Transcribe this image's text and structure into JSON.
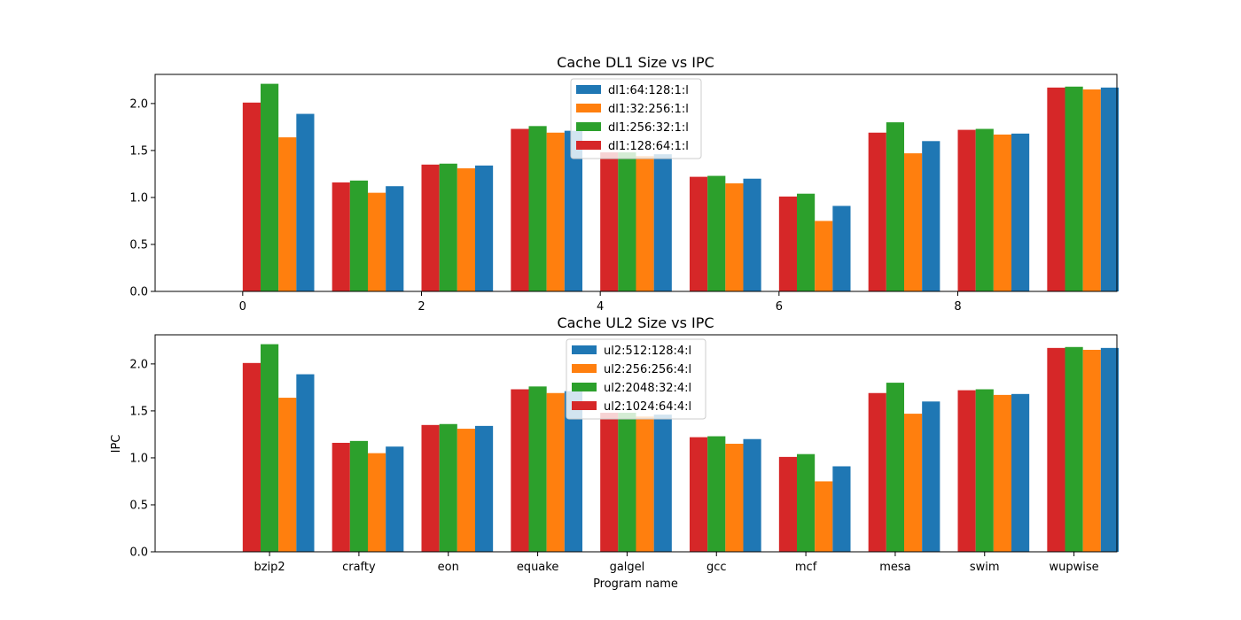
{
  "colors": {
    "red": "#d62728",
    "green": "#2ca02c",
    "orange": "#ff7f0e",
    "blue": "#1f77b4"
  },
  "chart_data": [
    {
      "type": "bar",
      "title": "Cache DL1 Size vs IPC",
      "xlabel": "",
      "ylabel": "",
      "x_ticks": [
        "0",
        "2",
        "4",
        "6",
        "8"
      ],
      "x_tick_positions": [
        0,
        2,
        4,
        6,
        8
      ],
      "y_ticks": [
        "0.0",
        "0.5",
        "1.0",
        "1.5",
        "2.0"
      ],
      "ylim": [
        0,
        2.31
      ],
      "xlim": [
        -0.98,
        9.78
      ],
      "legend_placement": "upper-center",
      "bar_order": [
        "dl1:128:64:1:l",
        "dl1:256:32:1:l",
        "dl1:32:256:1:l",
        "dl1:64:128:1:l"
      ],
      "legend_order": [
        "dl1:64:128:1:l",
        "dl1:32:256:1:l",
        "dl1:256:32:1:l",
        "dl1:128:64:1:l"
      ],
      "series": [
        {
          "name": "dl1:64:128:1:l",
          "color": "#1f77b4",
          "values": [
            1.89,
            1.12,
            1.34,
            1.71,
            1.46,
            1.2,
            0.91,
            1.6,
            1.68,
            2.17
          ]
        },
        {
          "name": "dl1:32:256:1:l",
          "color": "#ff7f0e",
          "values": [
            1.64,
            1.05,
            1.31,
            1.69,
            1.44,
            1.15,
            0.75,
            1.47,
            1.67,
            2.15
          ]
        },
        {
          "name": "dl1:256:32:1:l",
          "color": "#2ca02c",
          "values": [
            2.21,
            1.18,
            1.36,
            1.76,
            1.48,
            1.23,
            1.04,
            1.8,
            1.73,
            2.18
          ]
        },
        {
          "name": "dl1:128:64:1:l",
          "color": "#d62728",
          "values": [
            2.01,
            1.16,
            1.35,
            1.73,
            1.48,
            1.22,
            1.01,
            1.69,
            1.72,
            2.17
          ]
        }
      ]
    },
    {
      "type": "bar",
      "title": "Cache UL2 Size vs IPC",
      "xlabel": "Program name",
      "ylabel": "IPC",
      "categories": [
        "bzip2",
        "crafty",
        "eon",
        "equake",
        "galgel",
        "gcc",
        "mcf",
        "mesa",
        "swim",
        "wupwise"
      ],
      "y_ticks": [
        "0.0",
        "0.5",
        "1.0",
        "1.5",
        "2.0"
      ],
      "ylim": [
        0,
        2.31
      ],
      "xlim": [
        -0.98,
        9.78
      ],
      "category_offset": 0.3,
      "legend_placement": "upper-center",
      "bar_order": [
        "ul2:1024:64:4:l",
        "ul2:2048:32:4:l",
        "ul2:256:256:4:l",
        "ul2:512:128:4:l"
      ],
      "legend_order": [
        "ul2:512:128:4:l",
        "ul2:256:256:4:l",
        "ul2:2048:32:4:l",
        "ul2:1024:64:4:l"
      ],
      "series": [
        {
          "name": "ul2:512:128:4:l",
          "color": "#1f77b4",
          "values": [
            1.89,
            1.12,
            1.34,
            1.71,
            1.46,
            1.2,
            0.91,
            1.6,
            1.68,
            2.17
          ]
        },
        {
          "name": "ul2:256:256:4:l",
          "color": "#ff7f0e",
          "values": [
            1.64,
            1.05,
            1.31,
            1.69,
            1.44,
            1.15,
            0.75,
            1.47,
            1.67,
            2.15
          ]
        },
        {
          "name": "ul2:2048:32:4:l",
          "color": "#2ca02c",
          "values": [
            2.21,
            1.18,
            1.36,
            1.76,
            1.48,
            1.23,
            1.04,
            1.8,
            1.73,
            2.18
          ]
        },
        {
          "name": "ul2:1024:64:4:l",
          "color": "#d62728",
          "values": [
            2.01,
            1.16,
            1.35,
            1.73,
            1.48,
            1.22,
            1.01,
            1.69,
            1.72,
            2.17
          ]
        }
      ]
    }
  ]
}
